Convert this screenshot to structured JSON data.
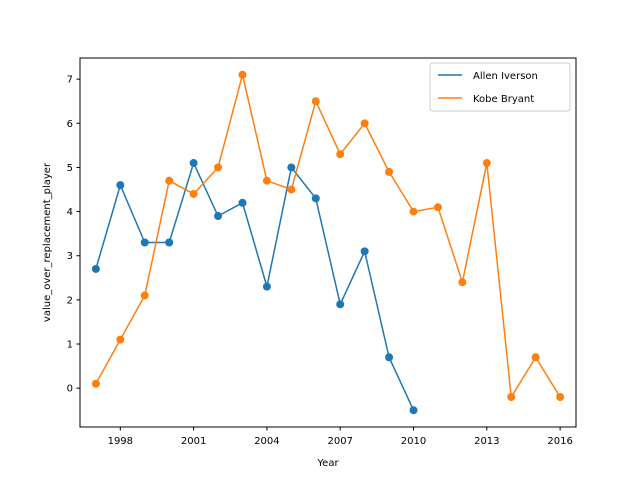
{
  "chart_data": {
    "type": "line",
    "title": "",
    "xlabel": "Year",
    "ylabel": "value_over_replacement_player",
    "xlim": [
      1996.35,
      2016.65
    ],
    "ylim": [
      -0.88,
      7.48
    ],
    "xticks": [
      1998,
      2001,
      2004,
      2007,
      2010,
      2013,
      2016
    ],
    "yticks": [
      0,
      1,
      2,
      3,
      4,
      5,
      6,
      7
    ],
    "grid": false,
    "legend_position": "top-right",
    "markers": true,
    "series": [
      {
        "name": "Allen Iverson",
        "color": "#1f77b4",
        "x": [
          1997,
          1998,
          1999,
          2000,
          2001,
          2002,
          2003,
          2004,
          2005,
          2006,
          2007,
          2008,
          2009,
          2010
        ],
        "y": [
          2.7,
          4.6,
          3.3,
          3.3,
          5.1,
          3.9,
          4.2,
          2.3,
          5.0,
          4.3,
          1.9,
          3.1,
          0.7,
          -0.5
        ]
      },
      {
        "name": "Kobe Bryant",
        "color": "#ff7f0e",
        "x": [
          1997,
          1998,
          1999,
          2000,
          2001,
          2002,
          2003,
          2004,
          2005,
          2006,
          2007,
          2008,
          2009,
          2010,
          2011,
          2012,
          2013,
          2014,
          2015,
          2016
        ],
        "y": [
          0.1,
          1.1,
          2.1,
          4.7,
          4.4,
          5.0,
          7.1,
          4.7,
          4.5,
          6.5,
          5.3,
          6.0,
          4.9,
          4.0,
          4.1,
          2.4,
          5.1,
          -0.2,
          0.7,
          -0.2
        ]
      }
    ]
  }
}
